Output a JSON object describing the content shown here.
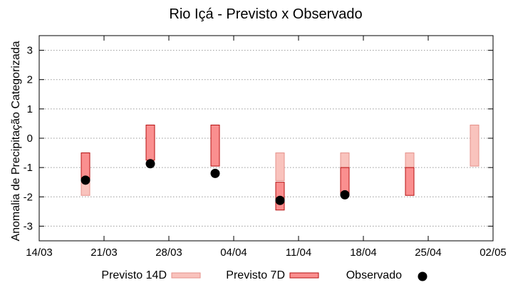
{
  "chart_data": {
    "type": "range-bar-scatter",
    "title": "Rio Içá - Previsto x Observado",
    "xlabel": "",
    "ylabel": "Anomalia de Precipitação Categorizada",
    "ylim": [
      -3.5,
      3.5
    ],
    "yticks": [
      "3",
      "2",
      "1",
      "0",
      "-1",
      "-2",
      "-3"
    ],
    "ytick_values": [
      3,
      2,
      1,
      0,
      -1,
      -2,
      -3
    ],
    "xlim_days": [
      0,
      49
    ],
    "xticks": [
      "14/03",
      "21/03",
      "28/03",
      "04/04",
      "11/04",
      "18/04",
      "25/04",
      "02/05"
    ],
    "xtick_days": [
      0,
      7,
      14,
      21,
      28,
      35,
      42,
      49
    ],
    "series": [
      {
        "name": "Previsto 14D",
        "color": "#f9c3bd",
        "stroke": "#e5908a",
        "ranges": [
          {
            "day": 5,
            "low": -1.95,
            "high": -0.5
          },
          {
            "day": 26,
            "low": -1.45,
            "high": -0.5
          },
          {
            "day": 33,
            "low": -1.45,
            "high": -0.5
          },
          {
            "day": 40,
            "low": -1.45,
            "high": -0.5
          },
          {
            "day": 47,
            "low": -0.95,
            "high": 0.45
          }
        ]
      },
      {
        "name": "Previsto 7D",
        "color": "#fa8f8f",
        "stroke": "#b51010",
        "ranges": [
          {
            "day": 5,
            "low": -1.45,
            "high": -0.5
          },
          {
            "day": 12,
            "low": -0.75,
            "high": 0.45
          },
          {
            "day": 19,
            "low": -0.95,
            "high": 0.45
          },
          {
            "day": 26,
            "low": -2.45,
            "high": -1.5
          },
          {
            "day": 33,
            "low": -1.95,
            "high": -1.0
          },
          {
            "day": 40,
            "low": -1.95,
            "high": -1.0
          }
        ]
      },
      {
        "name": "Observado",
        "color": "#000000",
        "points": [
          {
            "day": 5,
            "value": -1.43
          },
          {
            "day": 12,
            "value": -0.87
          },
          {
            "day": 19,
            "value": -1.2
          },
          {
            "day": 26,
            "value": -2.12
          },
          {
            "day": 33,
            "value": -1.93
          }
        ]
      }
    ],
    "legend": [
      "Previsto 14D",
      "Previsto 7D",
      "Observado"
    ],
    "legend_position": "bottom",
    "grid": true
  }
}
